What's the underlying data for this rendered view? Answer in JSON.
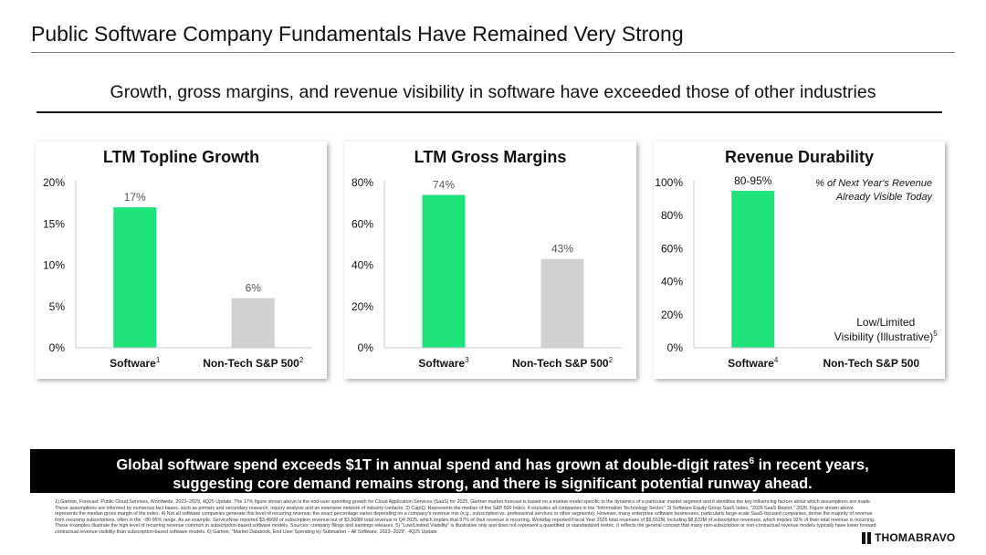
{
  "header": {
    "title": "Public Software Company Fundamentals Have Remained Very Strong",
    "subtitle": "Growth, gross margins, and revenue visibility in software have exceeded those of other industries"
  },
  "colors": {
    "software": "#1EE37B",
    "other": "#D0D0D0",
    "ink": "#000000"
  },
  "chart_data": [
    {
      "type": "bar",
      "title": "LTM Topline Growth",
      "categories": [
        "Software",
        "Non-Tech S&P 500"
      ],
      "superscripts": [
        "1",
        "2"
      ],
      "values": [
        17,
        6
      ],
      "data_labels": [
        "17%",
        "6%"
      ],
      "yticks": [
        "0%",
        "5%",
        "10%",
        "15%",
        "20%"
      ],
      "ylim": [
        0,
        20
      ],
      "xlabel": "",
      "ylabel": ""
    },
    {
      "type": "bar",
      "title": "LTM Gross Margins",
      "categories": [
        "Software",
        "Non-Tech S&P 500"
      ],
      "superscripts": [
        "3",
        "2"
      ],
      "values": [
        74,
        43
      ],
      "data_labels": [
        "74%",
        "43%"
      ],
      "yticks": [
        "0%",
        "20%",
        "40%",
        "60%",
        "80%"
      ],
      "ylim": [
        0,
        80
      ],
      "xlabel": "",
      "ylabel": ""
    },
    {
      "type": "bar",
      "title": "Revenue Durability",
      "categories": [
        "Software",
        "Non-Tech S&P 500"
      ],
      "superscripts": [
        "4",
        ""
      ],
      "values": [
        95,
        null
      ],
      "data_labels": [
        "80-95%",
        ""
      ],
      "yticks": [
        "0%",
        "20%",
        "40%",
        "60%",
        "80%",
        "100%"
      ],
      "ylim": [
        0,
        100
      ],
      "annotation": [
        "% of Next Year's Revenue",
        "Already Visible Today"
      ],
      "other_note": [
        "Low/Limited",
        "Visibility (Illustrative)"
      ],
      "other_note_sup": "5",
      "xlabel": "",
      "ylabel": ""
    }
  ],
  "banner": {
    "line1_pre": "Global software spend exceeds $1T in annual spend and has grown at double-digit rates",
    "line1_sup": "6",
    "line1_post": " in recent years,",
    "line2": "suggesting core demand remains strong, and there is significant potential runway ahead."
  },
  "footnotes": "1) Gartner, Forecast: Public Cloud Services, Worldwide, 2023–2029, 4Q25 Update. The 17% figure shown above is the end-user spending growth for Cloud Application Services (SaaS) for 2025. Gartner market forecast is based on a market model specific to the dynamics of a particular market segment and it identifies the key influencing factors about which assumptions are made. These assumptions are informed by numerous fact bases, such as primary and secondary research, inquiry analysis and an extensive network of industry contacts. 2) CapIQ. Represents the median of the S&P 500 Index. It excludes all companies in the \"Information Technology Sector.\" 3) Software Equity Group SaaS Index, \"2026 SaaS Report,\" 2026. Figure shown above represents the median gross margin of the index. 4) Not all software companies generate this level of recurring revenue; the exact percentage varies depending on a company's revenue mix (e.g., subscription vs. professional services or other segments). However, many enterprise software businesses, particularly large-scale SaaS-focused companies, derive the majority of revenue from recurring subscriptions, often in the ~80-95% range. As an example, ServiceNow reported $3,466M of subscription revenue out of $3,568M total revenue in Q4 2025, which implies that 97% of their revenue is recurring. Workday reported Fiscal Year 2026 total revenues of $9,552M, including $8,833M of subscription revenues, which implies 92% of their total revenue is recurring. These examples illustrate the high level of recurring revenue common in subscription-based software models. Sources: company filings and earnings releases. 5) \"Low/Limited Visibility\" is illustrative only and does not represent a quantified or standardized metric. It reflects the general concept that many non-subscription or non-contractual revenue models typically have lower forward contractual revenue visibility than subscription-based software models. 6) Gartner, \"Market Databook, End User Spending by Submarket – All Software, 2023–2029\", 4Q25 Update.",
  "logo": {
    "text": "THOMABRAVO"
  }
}
